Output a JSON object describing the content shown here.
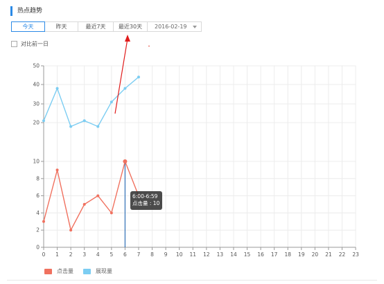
{
  "section": {
    "title": "热点趋势"
  },
  "tabs": [
    {
      "label": "今天",
      "active": true
    },
    {
      "label": "昨天",
      "active": false
    },
    {
      "label": "最近7天",
      "active": false
    },
    {
      "label": "最近30天",
      "active": false
    }
  ],
  "date_select": {
    "value": "2016-02-19"
  },
  "compare": {
    "label": "对比前一日",
    "checked": false
  },
  "tooltip": {
    "line1": "6:00-6:59",
    "line2": "点击量 : 10"
  },
  "legend": [
    {
      "name": "点击量",
      "color": "#f0715f"
    },
    {
      "name": "展现量",
      "color": "#7ccdf2"
    }
  ],
  "chart_data": {
    "type": "line",
    "x": [
      0,
      1,
      2,
      3,
      4,
      5,
      6,
      7,
      8,
      9,
      10,
      11,
      12,
      13,
      14,
      15,
      16,
      17,
      18,
      19,
      20,
      21,
      22,
      23
    ],
    "y_ticks": [
      0,
      2,
      4,
      6,
      8,
      10,
      20,
      30,
      40,
      50
    ],
    "series": [
      {
        "name": "点击量",
        "color": "#f0715f",
        "x": [
          0,
          1,
          2,
          3,
          4,
          5,
          6,
          7
        ],
        "values": [
          3,
          9,
          2,
          5,
          6,
          4,
          10,
          6
        ]
      },
      {
        "name": "展现量",
        "color": "#7ccdf2",
        "x": [
          0,
          1,
          2,
          3,
          4,
          5,
          6,
          7
        ],
        "values": [
          21,
          38,
          19,
          21,
          19,
          31,
          38,
          44
        ]
      }
    ],
    "highlight_x": 6
  }
}
